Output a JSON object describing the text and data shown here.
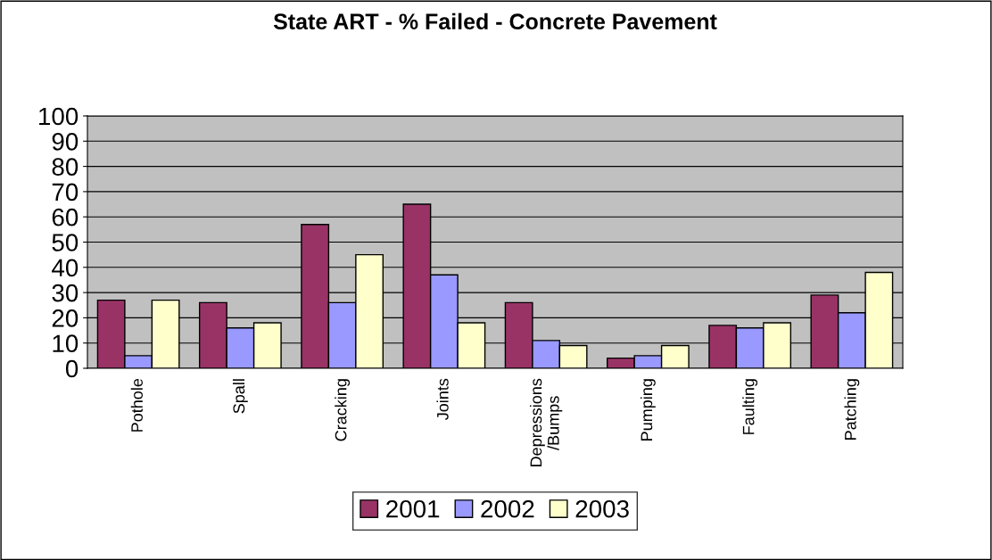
{
  "chart_data": {
    "type": "bar",
    "title": "State ART - % Failed - Concrete Pavement",
    "categories": [
      "Pothole",
      "Spall",
      "Cracking",
      "Joints",
      "Depressions\n/Bumps",
      "Pumping",
      "Faulting",
      "Patching"
    ],
    "series": [
      {
        "name": "2001",
        "color": "#993366",
        "values": [
          27,
          26,
          57,
          65,
          26,
          4,
          17,
          29
        ]
      },
      {
        "name": "2002",
        "color": "#9999ff",
        "values": [
          5,
          16,
          26,
          37,
          11,
          5,
          16,
          22
        ]
      },
      {
        "name": "2003",
        "color": "#ffffcc",
        "values": [
          27,
          18,
          45,
          18,
          9,
          9,
          18,
          38
        ]
      }
    ],
    "ylim": [
      0,
      100
    ],
    "yticks": [
      0,
      10,
      20,
      30,
      40,
      50,
      60,
      70,
      80,
      90,
      100
    ],
    "grid": "y",
    "legend": "bottom"
  }
}
